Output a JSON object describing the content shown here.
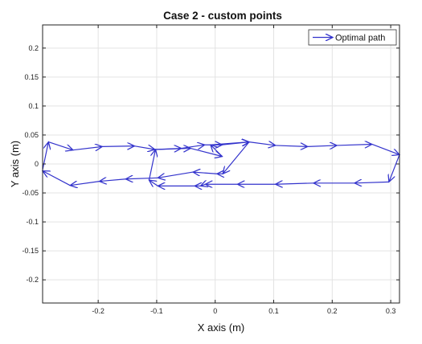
{
  "chart_data": {
    "type": "line",
    "title": "Case 2 - custom points",
    "xlabel": "X axis (m)",
    "ylabel": "Y axis (m)",
    "xlim": [
      -0.295,
      0.315
    ],
    "ylim": [
      -0.24,
      0.24
    ],
    "xticks": [
      -0.2,
      -0.1,
      0,
      0.1,
      0.2,
      0.3
    ],
    "xtick_labels": [
      "-0.2",
      "-0.1",
      "0",
      "0.1",
      "0.2",
      "0.3"
    ],
    "yticks": [
      -0.2,
      -0.15,
      -0.1,
      -0.05,
      0,
      0.05,
      0.1,
      0.15,
      0.2
    ],
    "ytick_labels": [
      "-0.2",
      "-0.15",
      "-0.1",
      "-0.05",
      "0",
      "0.05",
      "0.1",
      "0.15",
      "0.2"
    ],
    "grid": true,
    "legend_position": "top-right",
    "series": [
      {
        "name": "Optimal path",
        "color": "#3333cc",
        "style": "arrows",
        "x": [
          -0.295,
          -0.285,
          -0.243,
          -0.193,
          -0.138,
          -0.103,
          -0.058,
          -0.018,
          0.012,
          0.058,
          0.103,
          0.158,
          0.208,
          0.268,
          0.315,
          0.297,
          0.238,
          0.168,
          0.103,
          0.038,
          -0.017,
          -0.025,
          -0.035,
          -0.098,
          -0.113,
          -0.102,
          -0.042,
          0.012,
          -0.008,
          0.058,
          0.013,
          0.003,
          -0.038,
          -0.098,
          -0.153,
          -0.198,
          -0.248,
          -0.295
        ],
        "y": [
          -0.01,
          0.038,
          0.024,
          0.03,
          0.031,
          0.025,
          0.027,
          0.033,
          0.033,
          0.038,
          0.032,
          0.03,
          0.032,
          0.034,
          0.016,
          -0.031,
          -0.033,
          -0.033,
          -0.035,
          -0.035,
          -0.035,
          -0.038,
          -0.038,
          -0.038,
          -0.028,
          0.025,
          0.027,
          0.013,
          0.033,
          0.038,
          -0.017,
          -0.017,
          -0.014,
          -0.024,
          -0.026,
          -0.03,
          -0.037,
          -0.012
        ]
      }
    ]
  }
}
